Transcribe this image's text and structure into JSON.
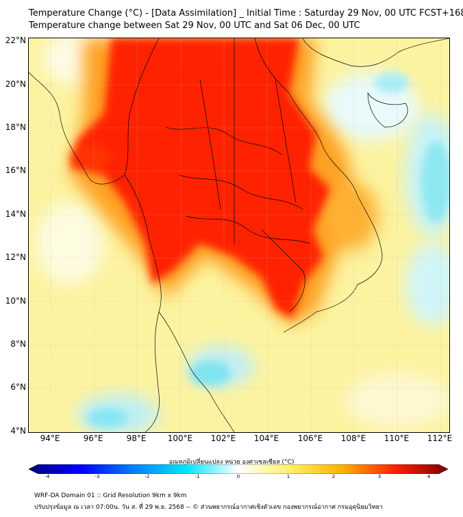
{
  "title_line1": "Temperature Change (°C) - [Data Assimilation] _ Initial Time : Saturday 29 Nov, 00 UTC FCST+168",
  "title_line2": "Temperature change between Sat 29 Nov, 00 UTC and Sat 06 Dec, 00 UTC",
  "lat_labels": [
    "22°N",
    "20°N",
    "18°N",
    "16°N",
    "14°N",
    "12°N",
    "10°N",
    "8°N",
    "6°N",
    "4°N"
  ],
  "lon_labels": [
    "94°E",
    "96°E",
    "98°E",
    "100°E",
    "102°E",
    "104°E",
    "106°E",
    "108°E",
    "110°E",
    "112°E"
  ],
  "colorbar": {
    "label": "อุณหภูมิเปลี่ยนแปลง หน่วย องศาเซลเซียส (°C)",
    "ticks": [
      "-4",
      "-3",
      "-2",
      "-1",
      "0",
      "1",
      "2",
      "3",
      "4"
    ],
    "range": [
      -4,
      4
    ],
    "colors": [
      "#00007f",
      "#0000ff",
      "#0080ff",
      "#00e5ff",
      "#ffffff",
      "#fff066",
      "#ffb000",
      "#ff2000",
      "#7f0000"
    ]
  },
  "footer_line1": "WRF-DA Domain 01 :: Grid Resolution 9km x 9km",
  "footer_line2": "ปรับปรุงข้อมูล ณ เวลา 07:00น. วัน ส. ที่ 29 พ.ย. 2568 -- © ส่วนพยากรณ์อากาศเชิงตัวเลข กองพยากรณ์อากาศ กรมอุตุนิยมวิทยา"
}
